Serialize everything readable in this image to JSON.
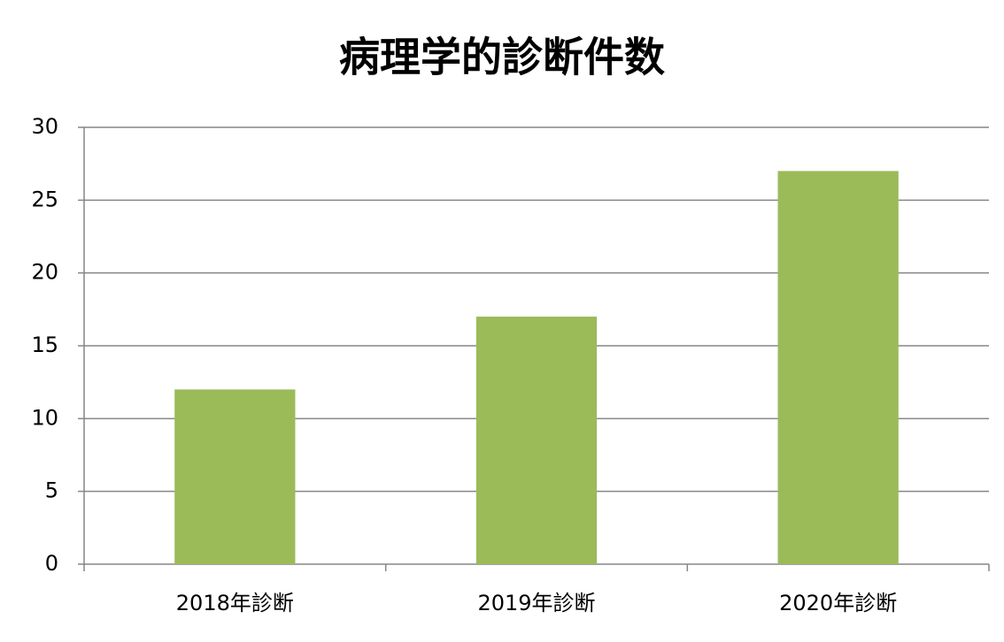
{
  "chart_data": {
    "type": "bar",
    "title": "病理学的診断件数",
    "categories": [
      "2018年診断",
      "2019年診断",
      "2020年診断"
    ],
    "values": [
      12,
      17,
      27
    ],
    "color": "#9bbb59",
    "ylim": [
      0,
      30
    ],
    "yticks": [
      0,
      5,
      10,
      15,
      20,
      25,
      30
    ],
    "grid": true
  }
}
